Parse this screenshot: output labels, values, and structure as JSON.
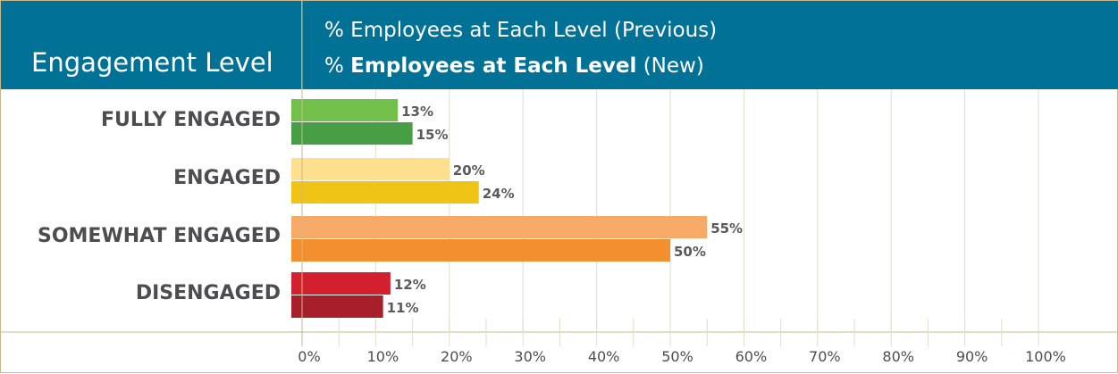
{
  "header": {
    "column_title": "Engagement Level",
    "legend_previous": "% Employees at Each Level (Previous)",
    "legend_new_prefix": "% ",
    "legend_new_bold": "Employees at Each Level",
    "legend_new_suffix": " (New)"
  },
  "colors": {
    "header_bg": "#027196",
    "grid": "#e3dcc7",
    "value_label": "#5a5a5a"
  },
  "chart_data": {
    "type": "bar",
    "orientation": "horizontal",
    "categories": [
      "FULLY ENGAGED",
      "ENGAGED",
      "SOMEWHAT ENGAGED",
      "DISENGAGED"
    ],
    "series": [
      {
        "name": "% Employees at Each Level (Previous)",
        "values": [
          13,
          20,
          55,
          12
        ],
        "colors": [
          "#72c04b",
          "#fde08e",
          "#f7a968",
          "#d2202f"
        ]
      },
      {
        "name": "% Employees at Each Level (New)",
        "values": [
          15,
          24,
          50,
          11
        ],
        "colors": [
          "#489e45",
          "#efc416",
          "#f48f2f",
          "#a81f2c"
        ]
      }
    ],
    "value_labels_prev": [
      "13%",
      "20%",
      "55%",
      "12%"
    ],
    "value_labels_new": [
      "15%",
      "24%",
      "50%",
      "11%"
    ],
    "tick_labels": [
      "0%",
      "10%",
      "20%",
      "30%",
      "40%",
      "50%",
      "60%",
      "70%",
      "80%",
      "90%",
      "100%"
    ],
    "xlim": [
      0,
      100
    ],
    "grid": true,
    "legend_position": "top"
  }
}
